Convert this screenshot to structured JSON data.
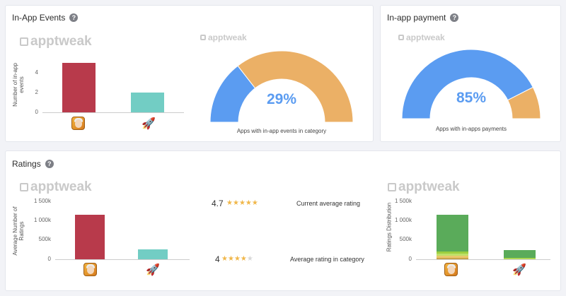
{
  "watermark": "apptweak",
  "events_card": {
    "title": "In-App Events",
    "help": "?",
    "bar_chart": {
      "ylabel": "Number of in-app events",
      "yticks": [
        "4",
        "2",
        "0"
      ]
    },
    "gauge": {
      "percent_label": "29%",
      "caption": "Apps with in-app events in category"
    }
  },
  "payment_card": {
    "title": "In-app payment",
    "help": "?",
    "gauge": {
      "percent_label": "85%",
      "caption": "Apps with in-apps payments"
    }
  },
  "ratings_card": {
    "title": "Ratings",
    "help": "?",
    "avg_chart": {
      "ylabel": "Average Number of Ratings",
      "yticks": [
        "1 500k",
        "1 000k",
        "500k",
        "0"
      ]
    },
    "current_rating": {
      "value": "4.7",
      "stars": 5,
      "label": "Current average rating"
    },
    "category_rating": {
      "value": "4",
      "stars": 4,
      "label": "Average rating in category"
    },
    "dist_chart": {
      "ylabel": "Ratings Distribution",
      "yticks": [
        "1 500k",
        "1 000k",
        "500k",
        "0"
      ]
    }
  },
  "icons": {
    "app": "app-icon",
    "category": "rocket-icon"
  },
  "colors": {
    "app": "#b83a4b",
    "category": "#72cdc4",
    "gauge_blue": "#5b9cf1",
    "gauge_orange": "#ebb066",
    "dist_green": "#5aab5a"
  },
  "chart_data": [
    {
      "type": "bar",
      "categories": [
        "",
        ""
      ],
      "values": [
        5,
        2
      ],
      "ylabel": "Number of in-app events",
      "ylim": [
        0,
        5.5
      ]
    },
    {
      "type": "pie",
      "values": [
        29,
        71
      ]
    },
    {
      "type": "pie",
      "values": [
        85,
        15
      ]
    },
    {
      "type": "bar",
      "categories": [
        "",
        ""
      ],
      "values": [
        1150000,
        250000
      ],
      "ylabel": "Average Number of Ratings",
      "ylim": [
        0,
        1500000
      ]
    },
    {
      "type": "bar",
      "categories": [
        "",
        ""
      ],
      "series": [
        {
          "values": [
            40000,
            10000
          ]
        },
        {
          "values": [
            60000,
            10000
          ]
        },
        {
          "values": [
            40000,
            5000
          ]
        },
        {
          "values": [
            70000,
            5000
          ]
        },
        {
          "values": [
            940000,
            200000
          ]
        }
      ],
      "ylabel": "Ratings Distribution",
      "ylim": [
        0,
        1500000
      ]
    }
  ]
}
